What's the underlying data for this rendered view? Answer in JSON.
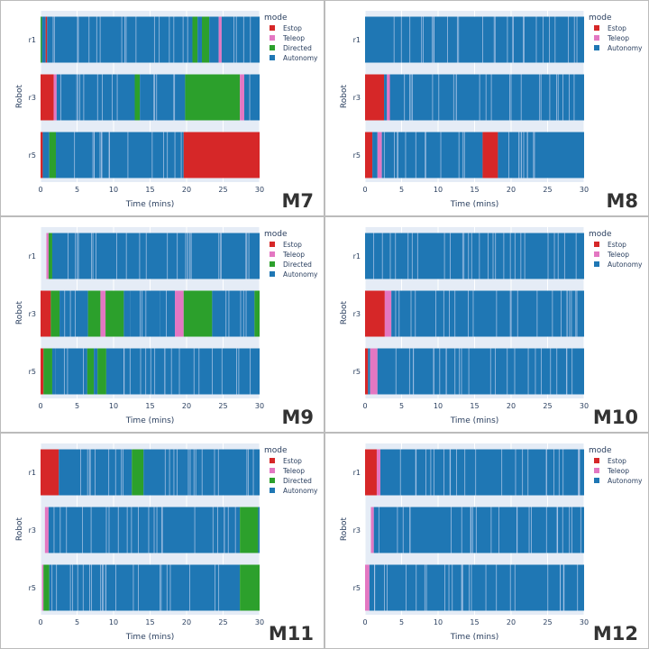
{
  "colors": {
    "Estop": "#d62728",
    "Teleop": "#e377c2",
    "Directed": "#2ca02c",
    "Autonomy": "#1f77b4",
    "plot_bg": "#e5ecf6",
    "panel_border": "#bbbbbb"
  },
  "chart_data": [
    {
      "type": "bar",
      "label": "M7",
      "xlabel": "Time (mins)",
      "ylabel": "Robot",
      "xlim": [
        0,
        30
      ],
      "xticks": [
        "0",
        "5",
        "10",
        "15",
        "20",
        "25",
        "30"
      ],
      "legend_title": "mode",
      "legend": [
        "Estop",
        "Teleop",
        "Directed",
        "Autonomy"
      ],
      "robots": [
        {
          "name": "r1",
          "segments": [
            [
              0,
              0.2,
              "Directed"
            ],
            [
              0.2,
              0.7,
              "Autonomy"
            ],
            [
              0.7,
              0.9,
              "Estop"
            ],
            [
              0.9,
              20.8,
              "Autonomy"
            ],
            [
              20.8,
              21.5,
              "Directed"
            ],
            [
              21.5,
              22.1,
              "Autonomy"
            ],
            [
              22.1,
              23.1,
              "Directed"
            ],
            [
              23.1,
              24.4,
              "Autonomy"
            ],
            [
              24.4,
              24.8,
              "Teleop"
            ],
            [
              24.8,
              30,
              "Autonomy"
            ]
          ]
        },
        {
          "name": "r3",
          "segments": [
            [
              0,
              1.8,
              "Estop"
            ],
            [
              1.8,
              2.2,
              "Teleop"
            ],
            [
              2.2,
              12.9,
              "Autonomy"
            ],
            [
              12.9,
              13.6,
              "Directed"
            ],
            [
              13.6,
              19.8,
              "Autonomy"
            ],
            [
              19.8,
              27.3,
              "Directed"
            ],
            [
              27.3,
              27.9,
              "Teleop"
            ],
            [
              27.9,
              30,
              "Autonomy"
            ]
          ]
        },
        {
          "name": "r5",
          "segments": [
            [
              0,
              0.3,
              "Estop"
            ],
            [
              0.3,
              1.2,
              "Autonomy"
            ],
            [
              1.2,
              2.1,
              "Directed"
            ],
            [
              2.1,
              19.6,
              "Autonomy"
            ],
            [
              19.6,
              30,
              "Estop"
            ]
          ]
        }
      ]
    },
    {
      "type": "bar",
      "label": "M8",
      "xlabel": "Time (mins)",
      "ylabel": "Robot",
      "xlim": [
        0,
        30
      ],
      "xticks": [
        "0",
        "5",
        "10",
        "15",
        "20",
        "25",
        "30"
      ],
      "legend_title": "mode",
      "legend": [
        "Estop",
        "Teleop",
        "Autonomy"
      ],
      "robots": [
        {
          "name": "r1",
          "segments": [
            [
              0,
              30,
              "Autonomy"
            ]
          ]
        },
        {
          "name": "r3",
          "segments": [
            [
              0,
              2.6,
              "Estop"
            ],
            [
              2.6,
              3.0,
              "Autonomy"
            ],
            [
              3.0,
              3.4,
              "Teleop"
            ],
            [
              3.4,
              30,
              "Autonomy"
            ]
          ]
        },
        {
          "name": "r5",
          "segments": [
            [
              0,
              1.0,
              "Estop"
            ],
            [
              1.0,
              1.7,
              "Autonomy"
            ],
            [
              1.7,
              2.3,
              "Teleop"
            ],
            [
              2.3,
              16.1,
              "Autonomy"
            ],
            [
              16.1,
              18.2,
              "Estop"
            ],
            [
              18.2,
              30,
              "Autonomy"
            ]
          ]
        }
      ]
    },
    {
      "type": "bar",
      "label": "M9",
      "xlabel": "Time (mins)",
      "ylabel": "Robot",
      "xlim": [
        0,
        30
      ],
      "xticks": [
        "0",
        "5",
        "10",
        "15",
        "20",
        "25",
        "30"
      ],
      "legend_title": "mode",
      "legend": [
        "Estop",
        "Teleop",
        "Directed",
        "Autonomy"
      ],
      "robots": [
        {
          "name": "r1",
          "segments": [
            [
              0.8,
              1.1,
              "Teleop"
            ],
            [
              1.1,
              1.6,
              "Directed"
            ],
            [
              1.6,
              30,
              "Autonomy"
            ]
          ]
        },
        {
          "name": "r3",
          "segments": [
            [
              0,
              1.4,
              "Estop"
            ],
            [
              1.4,
              2.6,
              "Directed"
            ],
            [
              2.6,
              6.5,
              "Autonomy"
            ],
            [
              6.5,
              8.2,
              "Directed"
            ],
            [
              8.2,
              8.9,
              "Teleop"
            ],
            [
              8.9,
              11.4,
              "Directed"
            ],
            [
              11.4,
              12.3,
              "Autonomy"
            ],
            [
              12.3,
              16.4,
              "Autonomy"
            ],
            [
              16.4,
              18.4,
              "Autonomy"
            ],
            [
              18.4,
              19.6,
              "Teleop"
            ],
            [
              19.6,
              23.5,
              "Directed"
            ],
            [
              23.5,
              29.3,
              "Autonomy"
            ],
            [
              29.3,
              30,
              "Directed"
            ]
          ]
        },
        {
          "name": "r5",
          "segments": [
            [
              0,
              0.4,
              "Estop"
            ],
            [
              0.4,
              1.6,
              "Directed"
            ],
            [
              1.6,
              2.0,
              "Autonomy"
            ],
            [
              2.0,
              6.4,
              "Autonomy"
            ],
            [
              6.4,
              7.3,
              "Directed"
            ],
            [
              7.3,
              7.8,
              "Autonomy"
            ],
            [
              7.8,
              9.0,
              "Directed"
            ],
            [
              9.0,
              30,
              "Autonomy"
            ]
          ]
        }
      ]
    },
    {
      "type": "bar",
      "label": "M10",
      "xlabel": "Time (mins)",
      "ylabel": "Robot",
      "xlim": [
        0,
        30
      ],
      "xticks": [
        "0",
        "5",
        "10",
        "15",
        "20",
        "25",
        "30"
      ],
      "legend_title": "mode",
      "legend": [
        "Estop",
        "Teleop",
        "Autonomy"
      ],
      "robots": [
        {
          "name": "r1",
          "segments": [
            [
              0,
              30,
              "Autonomy"
            ]
          ]
        },
        {
          "name": "r3",
          "segments": [
            [
              0,
              2.7,
              "Estop"
            ],
            [
              2.7,
              3.6,
              "Teleop"
            ],
            [
              3.6,
              30,
              "Autonomy"
            ]
          ]
        },
        {
          "name": "r5",
          "segments": [
            [
              0,
              0.4,
              "Estop"
            ],
            [
              0.4,
              0.7,
              "Autonomy"
            ],
            [
              0.7,
              1.7,
              "Teleop"
            ],
            [
              1.7,
              30,
              "Autonomy"
            ]
          ]
        }
      ]
    },
    {
      "type": "bar",
      "label": "M11",
      "xlabel": "Time (mins)",
      "ylabel": "Robot",
      "xlim": [
        0,
        30
      ],
      "xticks": [
        "0",
        "5",
        "10",
        "15",
        "20",
        "25",
        "30"
      ],
      "legend_title": "mode",
      "legend": [
        "Estop",
        "Teleop",
        "Directed",
        "Autonomy"
      ],
      "robots": [
        {
          "name": "r1",
          "segments": [
            [
              0,
              2.5,
              "Estop"
            ],
            [
              2.5,
              12.5,
              "Autonomy"
            ],
            [
              12.5,
              14.1,
              "Directed"
            ],
            [
              14.1,
              30,
              "Autonomy"
            ]
          ]
        },
        {
          "name": "r3",
          "segments": [
            [
              0.6,
              1.1,
              "Teleop"
            ],
            [
              1.1,
              27.3,
              "Autonomy"
            ],
            [
              27.3,
              29.8,
              "Directed"
            ],
            [
              29.8,
              30,
              "Autonomy"
            ]
          ]
        },
        {
          "name": "r5",
          "segments": [
            [
              0.2,
              0.4,
              "Teleop"
            ],
            [
              0.4,
              1.2,
              "Directed"
            ],
            [
              1.2,
              27.3,
              "Autonomy"
            ],
            [
              27.3,
              30,
              "Directed"
            ]
          ]
        }
      ]
    },
    {
      "type": "bar",
      "label": "M12",
      "xlabel": "Time (mins)",
      "ylabel": "Robot",
      "xlim": [
        0,
        30
      ],
      "xticks": [
        "0",
        "5",
        "10",
        "15",
        "20",
        "25",
        "30"
      ],
      "legend_title": "mode",
      "legend": [
        "Estop",
        "Teleop",
        "Autonomy"
      ],
      "robots": [
        {
          "name": "r1",
          "segments": [
            [
              0,
              1.6,
              "Estop"
            ],
            [
              1.6,
              2.1,
              "Teleop"
            ],
            [
              2.1,
              30,
              "Autonomy"
            ]
          ]
        },
        {
          "name": "r3",
          "segments": [
            [
              0.8,
              1.2,
              "Teleop"
            ],
            [
              1.2,
              30,
              "Autonomy"
            ]
          ]
        },
        {
          "name": "r5",
          "segments": [
            [
              0,
              0.6,
              "Teleop"
            ],
            [
              0.6,
              30,
              "Autonomy"
            ]
          ]
        }
      ]
    }
  ]
}
